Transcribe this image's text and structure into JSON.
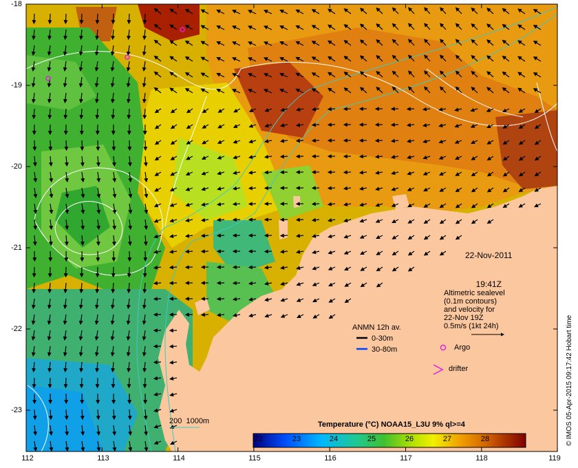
{
  "map": {
    "lat_labels": [
      "-18",
      "-19",
      "-20",
      "-21",
      "-22",
      "-23"
    ],
    "lon_labels": [
      "112",
      "113",
      "114",
      "115",
      "116",
      "117",
      "118",
      "119"
    ],
    "date": "22-Nov-2011",
    "time": "19:41Z",
    "altimetry_note": "Altimetric sealevel\n(0.1m contours)\nand velocity for\n22-Nov 19Z\n0.5m/s (1kt 24h)",
    "anmn_title": "ANMN 12h av.",
    "anmn_0_30": "0-30m",
    "anmn_30_80": "30-80m",
    "argo_label": "Argo",
    "drifter_label": "drifter",
    "bathy_label": "200  1000m",
    "colorbar_title": "Temperature (°C) NOAA15_L3U 9% ql>=4",
    "colorbar_ticks": [
      "22",
      "23",
      "24",
      "25",
      "26",
      "27",
      "28"
    ],
    "credit": "© IMOS 05-Apr-2015 09:17:42 Hobart time",
    "colors": {
      "land": "#fbc79f",
      "contour": "#ffffff",
      "bathy": "#40c8c0",
      "argo": "#e020e0",
      "anmn_deep": "#0040ff"
    }
  }
}
